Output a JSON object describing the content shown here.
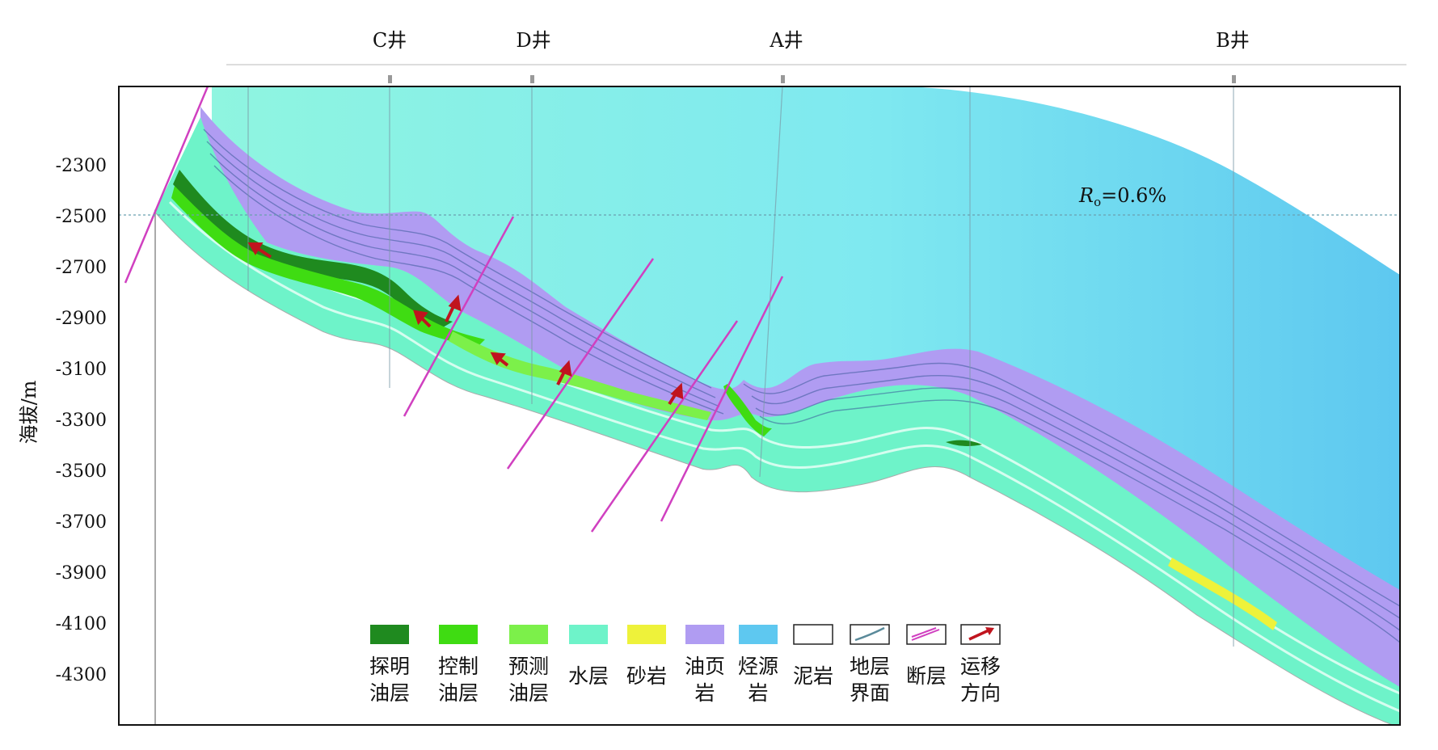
{
  "wells": [
    {
      "label": "C井"
    },
    {
      "label": "D井"
    },
    {
      "label": "A井"
    },
    {
      "label": "B井"
    }
  ],
  "y_axis": {
    "label": "海拔/m",
    "ticks": [
      "-2300",
      "-2500",
      "-2700",
      "-2900",
      "-3100",
      "-3300",
      "-3500",
      "-3700",
      "-3900",
      "-4100",
      "-4300"
    ]
  },
  "annotation": {
    "ro_symbol": "R",
    "ro_sub": "o",
    "ro_value": "=0.6%"
  },
  "legend": [
    {
      "line1": "探明",
      "line2": "油层",
      "color": "#1f8a1f",
      "icon": "swatch"
    },
    {
      "line1": "控制",
      "line2": "油层",
      "color": "#3fdc12",
      "icon": "swatch"
    },
    {
      "line1": "预测",
      "line2": "油层",
      "color": "#7cf04a",
      "icon": "swatch"
    },
    {
      "line1": "水层",
      "line2": "",
      "color": "#6ef3c9",
      "icon": "swatch"
    },
    {
      "line1": "砂岩",
      "line2": "",
      "color": "#eef23a",
      "icon": "swatch"
    },
    {
      "line1": "油页",
      "line2": "岩",
      "color": "#b09cf2",
      "icon": "swatch"
    },
    {
      "line1": "烃源",
      "line2": "岩",
      "color": "#5ec8f0",
      "icon": "swatch"
    },
    {
      "line1": "泥岩",
      "line2": "",
      "color": "#ffffff",
      "icon": "swatch"
    },
    {
      "line1": "地层",
      "line2": "界面",
      "color": "#ffffff",
      "icon": "boundary-line-icon"
    },
    {
      "line1": "断层",
      "line2": "",
      "color": "#ffffff",
      "icon": "fault-arrow-icon"
    },
    {
      "line1": "运移",
      "line2": "方向",
      "color": "#ffffff",
      "icon": "migration-arrow-icon"
    }
  ],
  "colors": {
    "source_rock": "#5ec8f0",
    "shale": "#b09cf2",
    "water": "#6ef3c9",
    "sand": "#eef23a",
    "proven": "#1f8a1f",
    "controlled": "#3fdc12",
    "predicted": "#7cf04a",
    "fault": "#d040c0",
    "migration": "#c0141e"
  }
}
